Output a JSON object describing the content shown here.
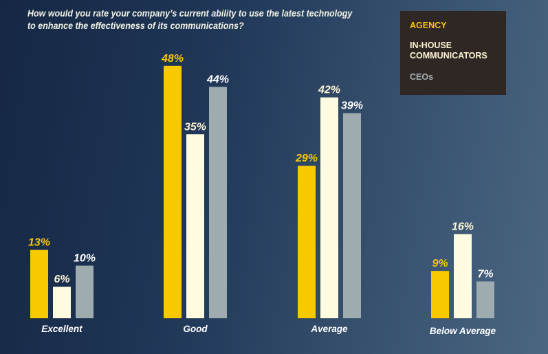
{
  "chart_data": {
    "type": "bar",
    "title": "How would you rate your company’s current ability to use the latest technology to enhance the effectiveness of its communications?",
    "categories": [
      "Excellent",
      "Good",
      "Average",
      "Below Average"
    ],
    "series": [
      {
        "name": "AGENCY",
        "values": [
          13,
          48,
          29,
          9
        ],
        "color": "#f9c900",
        "label_color": "#f7c600"
      },
      {
        "name": "IN-HOUSE COMMUNICATORS",
        "values": [
          6,
          35,
          42,
          16
        ],
        "color": "#fffbe0",
        "label_color": "#fff6d4"
      },
      {
        "name": "CEOs",
        "values": [
          10,
          44,
          39,
          7
        ],
        "color": "#9eacb0",
        "label_color": "#ffffff"
      }
    ],
    "value_suffix": "%",
    "ylim": [
      0,
      50
    ],
    "grid": false,
    "legend_position": "top-right"
  }
}
